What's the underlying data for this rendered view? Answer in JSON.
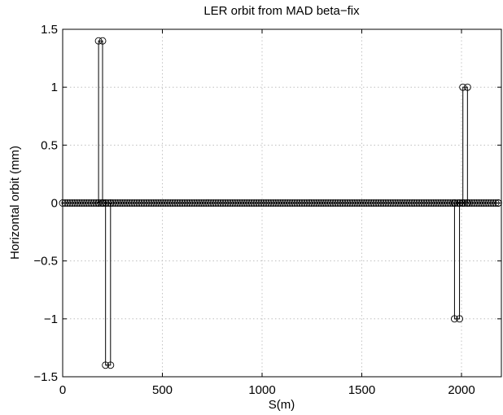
{
  "chart_data": {
    "type": "line",
    "title": "LER orbit from MAD beta−fix",
    "xlabel": "S(m)",
    "ylabel": "Horizontal orbit (mm)",
    "xlim": [
      0,
      2200
    ],
    "ylim": [
      -1.5,
      1.5
    ],
    "xticks": [
      0,
      500,
      1000,
      1500,
      2000
    ],
    "yticks": [
      -1.5,
      -1,
      -0.5,
      0,
      0.5,
      1,
      1.5
    ],
    "xtick_labels": [
      "0",
      "500",
      "1000",
      "1500",
      "2000"
    ],
    "ytick_labels": [
      "−1.5",
      "−1",
      "−0.5",
      "0",
      "0.5",
      "1",
      "1.5"
    ],
    "grid": true,
    "marker": "circle",
    "baseline": {
      "y": 0,
      "x_start": 0,
      "x_end": 2185,
      "spacing": 12
    },
    "bumps": [
      {
        "x": [
          180,
          180,
          200,
          200
        ],
        "y": [
          0,
          1.4,
          1.4,
          0
        ]
      },
      {
        "x": [
          215,
          215,
          240,
          240
        ],
        "y": [
          0,
          -1.4,
          -1.4,
          0
        ]
      },
      {
        "x": [
          1965,
          1965,
          1990,
          1990
        ],
        "y": [
          0,
          -1.0,
          -1.0,
          0
        ]
      },
      {
        "x": [
          2007,
          2007,
          2030,
          2030
        ],
        "y": [
          0,
          1.0,
          1.0,
          0
        ]
      }
    ]
  }
}
